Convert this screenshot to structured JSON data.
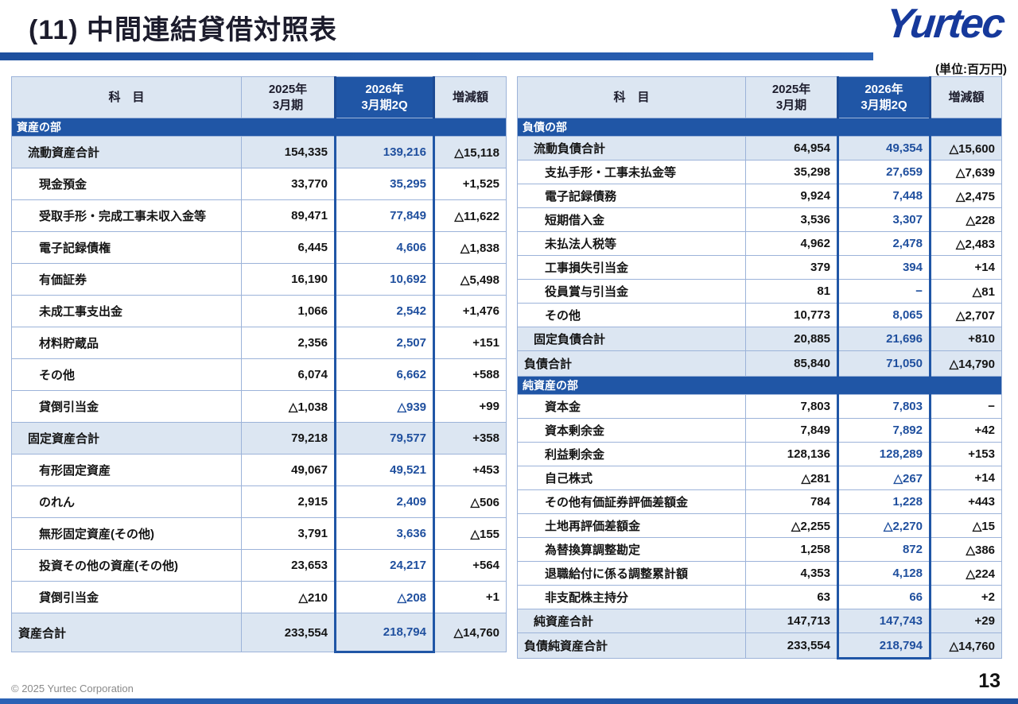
{
  "slide": {
    "title": "(11) 中間連結貸借対照表",
    "logo": "Yurtec",
    "unit_note": "(単位:百万円)",
    "footer": "© 2025 Yurtec Corporation",
    "page_number": "13"
  },
  "columns": {
    "item": "科　目",
    "prev": "2025年\n3月期",
    "curr": "2026年\n3月期2Q",
    "change": "増減額"
  },
  "assets_table": {
    "name": "資産の部",
    "rows": [
      {
        "type": "section",
        "label": "資産の部"
      },
      {
        "type": "subtotal",
        "indent": 1,
        "label": "流動資産合計",
        "prev": "154,335",
        "curr": "139,216",
        "change": "△15,118"
      },
      {
        "type": "detail",
        "indent": 2,
        "label": "現金預金",
        "prev": "33,770",
        "curr": "35,295",
        "change": "+1,525"
      },
      {
        "type": "detail",
        "indent": 2,
        "label": "受取手形・完成工事未収入金等",
        "prev": "89,471",
        "curr": "77,849",
        "change": "△11,622"
      },
      {
        "type": "detail",
        "indent": 2,
        "label": "電子記録債権",
        "prev": "6,445",
        "curr": "4,606",
        "change": "△1,838"
      },
      {
        "type": "detail",
        "indent": 2,
        "label": "有価証券",
        "prev": "16,190",
        "curr": "10,692",
        "change": "△5,498"
      },
      {
        "type": "detail",
        "indent": 2,
        "label": "未成工事支出金",
        "prev": "1,066",
        "curr": "2,542",
        "change": "+1,476"
      },
      {
        "type": "detail",
        "indent": 2,
        "label": "材料貯蔵品",
        "prev": "2,356",
        "curr": "2,507",
        "change": "+151"
      },
      {
        "type": "detail",
        "indent": 2,
        "label": "その他",
        "prev": "6,074",
        "curr": "6,662",
        "change": "+588"
      },
      {
        "type": "detail",
        "indent": 2,
        "label": "貸倒引当金",
        "prev": "△1,038",
        "curr": "△939",
        "change": "+99"
      },
      {
        "type": "subtotal",
        "indent": 1,
        "label": "固定資産合計",
        "prev": "79,218",
        "curr": "79,577",
        "change": "+358"
      },
      {
        "type": "detail",
        "indent": 2,
        "label": "有形固定資産",
        "prev": "49,067",
        "curr": "49,521",
        "change": "+453"
      },
      {
        "type": "detail",
        "indent": 2,
        "label": "のれん",
        "prev": "2,915",
        "curr": "2,409",
        "change": "△506"
      },
      {
        "type": "detail",
        "indent": 2,
        "label": "無形固定資産(その他)",
        "prev": "3,791",
        "curr": "3,636",
        "change": "△155"
      },
      {
        "type": "detail",
        "indent": 2,
        "label": "投資その他の資産(その他)",
        "prev": "23,653",
        "curr": "24,217",
        "change": "+564"
      },
      {
        "type": "detail",
        "indent": 2,
        "label": "貸倒引当金",
        "prev": "△210",
        "curr": "△208",
        "change": "+1"
      },
      {
        "type": "total",
        "indent": 0,
        "label": "資産合計",
        "prev": "233,554",
        "curr": "218,794",
        "change": "△14,760"
      }
    ]
  },
  "liabilities_table": {
    "name": "負債・純資産の部",
    "rows": [
      {
        "type": "section",
        "label": "負債の部"
      },
      {
        "type": "subtotal",
        "indent": 1,
        "label": "流動負債合計",
        "prev": "64,954",
        "curr": "49,354",
        "change": "△15,600"
      },
      {
        "type": "detail",
        "indent": 2,
        "label": "支払手形・工事未払金等",
        "prev": "35,298",
        "curr": "27,659",
        "change": "△7,639"
      },
      {
        "type": "detail",
        "indent": 2,
        "label": "電子記録債務",
        "prev": "9,924",
        "curr": "7,448",
        "change": "△2,475"
      },
      {
        "type": "detail",
        "indent": 2,
        "label": "短期借入金",
        "prev": "3,536",
        "curr": "3,307",
        "change": "△228"
      },
      {
        "type": "detail",
        "indent": 2,
        "label": "未払法人税等",
        "prev": "4,962",
        "curr": "2,478",
        "change": "△2,483"
      },
      {
        "type": "detail",
        "indent": 2,
        "label": "工事損失引当金",
        "prev": "379",
        "curr": "394",
        "change": "+14"
      },
      {
        "type": "detail",
        "indent": 2,
        "label": "役員賞与引当金",
        "prev": "81",
        "curr": "−",
        "change": "△81"
      },
      {
        "type": "detail",
        "indent": 2,
        "label": "その他",
        "prev": "10,773",
        "curr": "8,065",
        "change": "△2,707"
      },
      {
        "type": "subtotal",
        "indent": 1,
        "label": "固定負債合計",
        "prev": "20,885",
        "curr": "21,696",
        "change": "+810"
      },
      {
        "type": "total",
        "indent": 0,
        "label": "負債合計",
        "prev": "85,840",
        "curr": "71,050",
        "change": "△14,790"
      },
      {
        "type": "section",
        "label": "純資産の部"
      },
      {
        "type": "detail",
        "indent": 2,
        "label": "資本金",
        "prev": "7,803",
        "curr": "7,803",
        "change": "−"
      },
      {
        "type": "detail",
        "indent": 2,
        "label": "資本剰余金",
        "prev": "7,849",
        "curr": "7,892",
        "change": "+42"
      },
      {
        "type": "detail",
        "indent": 2,
        "label": "利益剰余金",
        "prev": "128,136",
        "curr": "128,289",
        "change": "+153"
      },
      {
        "type": "detail",
        "indent": 2,
        "label": "自己株式",
        "prev": "△281",
        "curr": "△267",
        "change": "+14"
      },
      {
        "type": "detail",
        "indent": 2,
        "label": "その他有価証券評価差額金",
        "prev": "784",
        "curr": "1,228",
        "change": "+443"
      },
      {
        "type": "detail",
        "indent": 2,
        "label": "土地再評価差額金",
        "prev": "△2,255",
        "curr": "△2,270",
        "change": "△15"
      },
      {
        "type": "detail",
        "indent": 2,
        "label": "為替換算調整勘定",
        "prev": "1,258",
        "curr": "872",
        "change": "△386"
      },
      {
        "type": "detail",
        "indent": 2,
        "label": "退職給付に係る調整累計額",
        "prev": "4,353",
        "curr": "4,128",
        "change": "△224"
      },
      {
        "type": "detail",
        "indent": 2,
        "label": "非支配株主持分",
        "prev": "63",
        "curr": "66",
        "change": "+2"
      },
      {
        "type": "subtotal",
        "indent": 1,
        "label": "純資産合計",
        "prev": "147,713",
        "curr": "147,743",
        "change": "+29"
      },
      {
        "type": "total",
        "indent": 0,
        "label": "負債純資産合計",
        "prev": "233,554",
        "curr": "218,794",
        "change": "△14,760"
      }
    ]
  }
}
